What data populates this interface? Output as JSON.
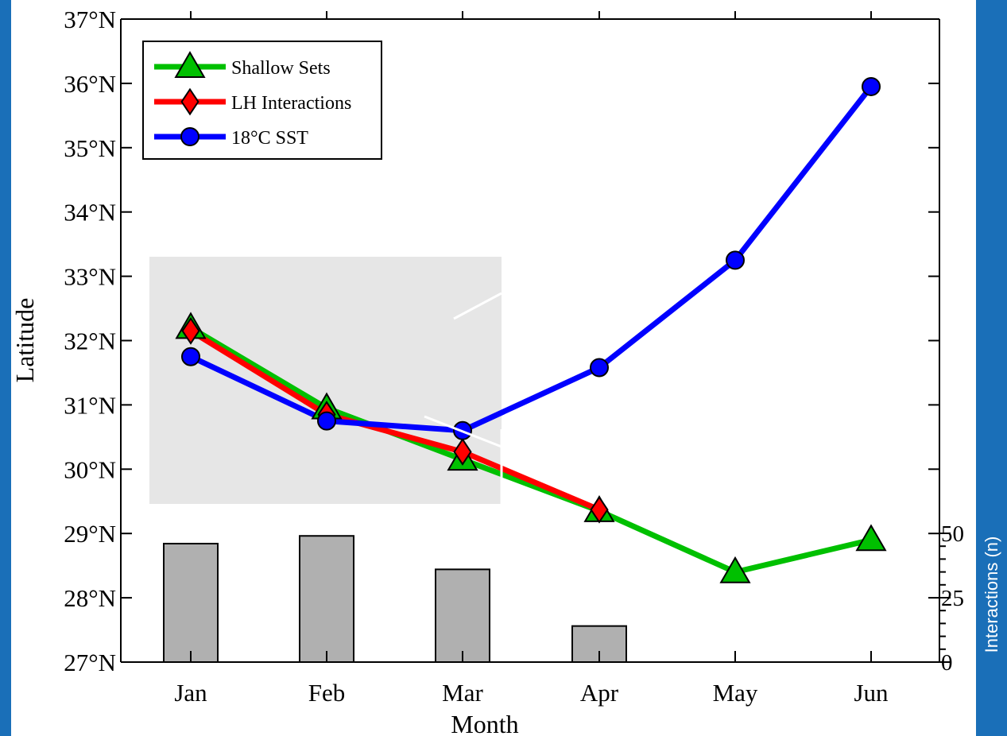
{
  "slide": {
    "side_label": "Interactions (n)",
    "colors": {
      "frame_blue": "#1a6fb8",
      "background": "#ffffff",
      "panel_gray": "#e6e6e6"
    }
  },
  "chart_data": {
    "type": "line",
    "xlabel": "Month",
    "ylabel": "Latitude",
    "categories": [
      "Jan",
      "Feb",
      "Mar",
      "Apr",
      "May",
      "Jun"
    ],
    "ylim": [
      27,
      37
    ],
    "y_tick_labels": [
      "27°N",
      "28°N",
      "29°N",
      "30°N",
      "31°N",
      "32°N",
      "33°N",
      "34°N",
      "35°N",
      "36°N",
      "37°N"
    ],
    "legend_position": "top-left",
    "series": [
      {
        "name": "Shallow Sets",
        "marker": "triangle",
        "color": "#00c000",
        "values": [
          32.2,
          30.95,
          30.15,
          29.35,
          28.4,
          28.9
        ]
      },
      {
        "name": "LH Interactions",
        "marker": "diamond",
        "color": "#ff0000",
        "values": [
          32.15,
          30.85,
          30.27,
          29.37,
          null,
          null
        ]
      },
      {
        "name": "18°C  SST",
        "marker": "circle",
        "color": "#0000ff",
        "values": [
          31.75,
          30.75,
          30.6,
          31.58,
          33.25,
          35.95
        ]
      }
    ],
    "bars": {
      "name": "Interactions (n)",
      "color": "#b0b0b0",
      "axis": "right",
      "ylim": [
        0,
        50
      ],
      "y_tick_labels": [
        "0",
        "25",
        "50"
      ],
      "values": [
        46,
        49,
        36,
        14,
        0,
        0
      ]
    },
    "grid": false
  }
}
